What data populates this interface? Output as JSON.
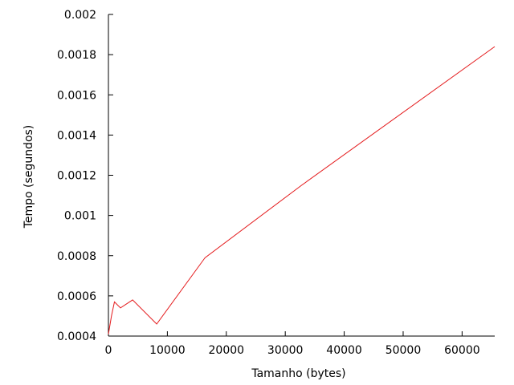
{
  "chart_data": {
    "type": "line",
    "title": "",
    "xlabel": "Tamanho (bytes)",
    "ylabel": "Tempo (segundos)",
    "xlim": [
      0,
      65536
    ],
    "ylim": [
      0.0004,
      0.002
    ],
    "x_ticks": [
      0,
      10000,
      20000,
      30000,
      40000,
      50000,
      60000
    ],
    "x_tick_labels": [
      "0",
      "10000",
      "20000",
      "30000",
      "40000",
      "50000",
      "60000"
    ],
    "y_ticks": [
      0.0004,
      0.0006,
      0.0008,
      0.001,
      0.0012,
      0.0014,
      0.0016,
      0.0018,
      0.002
    ],
    "y_tick_labels": [
      "0.0004",
      "0.0006",
      "0.0008",
      "0.001",
      "0.0012",
      "0.0014",
      "0.0016",
      "0.0018",
      "0.002"
    ],
    "grid": false,
    "legend": "none",
    "series": [
      {
        "color": "#e41a1c",
        "x": [
          0,
          512,
          1024,
          2048,
          4096,
          8192,
          16384,
          32768,
          65536
        ],
        "y": [
          0.00041,
          0.0005,
          0.00057,
          0.00054,
          0.00058,
          0.00046,
          0.00079,
          0.00115,
          0.00184
        ]
      }
    ]
  }
}
